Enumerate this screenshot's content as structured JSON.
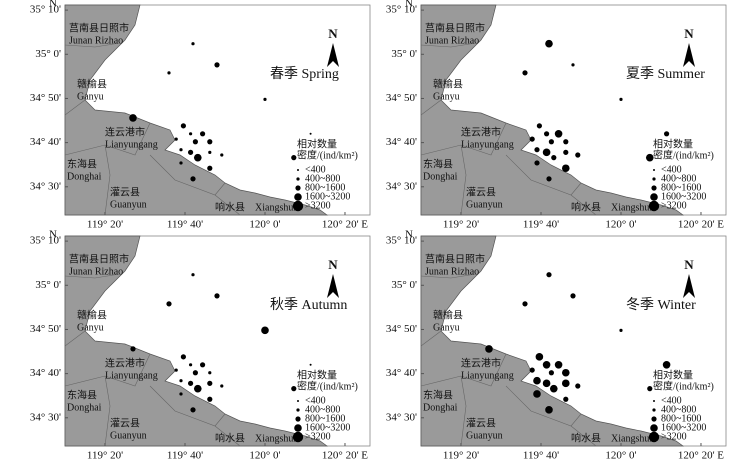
{
  "lat_axis_letter": "N",
  "north_arrow": "N",
  "lat_ticks": [
    {
      "value": 35.1667,
      "label": "35° 10'"
    },
    {
      "value": 35,
      "label": "35° 0'"
    },
    {
      "value": 34.8333,
      "label": "34° 50'"
    },
    {
      "value": 34.6667,
      "label": "34° 40'"
    },
    {
      "value": 34.5,
      "label": "34° 30'"
    }
  ],
  "lon_ticks": [
    {
      "value": 119.3333,
      "label": "119° 20'"
    },
    {
      "value": 119.6667,
      "label": "119° 40'"
    },
    {
      "value": 120,
      "label": "120° 0'"
    },
    {
      "value": 120.3333,
      "label": "120° 20' E"
    }
  ],
  "places": [
    {
      "cn": "莒南县日照市",
      "en": "Junan  Rizhao"
    },
    {
      "cn": "赣榆县",
      "en": "Ganyu"
    },
    {
      "cn": "连云港市",
      "en": "Lianyungang"
    },
    {
      "cn": "东海县",
      "en": "Donghai"
    },
    {
      "cn": "灌云县",
      "en": "Guanyun"
    },
    {
      "cn": "响水县",
      "en": "Xiangshui"
    }
  ],
  "legend": {
    "title": [
      "相对数量",
      "密度/(ind/km²)"
    ],
    "classes": [
      "<400",
      "400~800",
      "800~1600",
      "1600~3200",
      ">3200"
    ]
  },
  "stations": [
    {
      "lon": 119.7,
      "lat": 35.04
    },
    {
      "lon": 119.8,
      "lat": 34.96
    },
    {
      "lon": 119.6,
      "lat": 34.93
    },
    {
      "lon": 120.0,
      "lat": 34.83
    },
    {
      "lon": 119.45,
      "lat": 34.76
    },
    {
      "lon": 119.66,
      "lat": 34.73
    },
    {
      "lon": 119.69,
      "lat": 34.7
    },
    {
      "lon": 119.74,
      "lat": 34.7
    },
    {
      "lon": 119.63,
      "lat": 34.68
    },
    {
      "lon": 119.71,
      "lat": 34.67
    },
    {
      "lon": 119.77,
      "lat": 34.67
    },
    {
      "lon": 119.65,
      "lat": 34.64
    },
    {
      "lon": 119.69,
      "lat": 34.63
    },
    {
      "lon": 119.72,
      "lat": 34.61
    },
    {
      "lon": 119.77,
      "lat": 34.63
    },
    {
      "lon": 119.82,
      "lat": 34.62
    },
    {
      "lon": 119.65,
      "lat": 34.59
    },
    {
      "lon": 119.77,
      "lat": 34.57
    },
    {
      "lon": 119.7,
      "lat": 34.53
    },
    {
      "lon": 120.12,
      "lat": 34.61
    },
    {
      "lon": 120.19,
      "lat": 34.7
    }
  ],
  "panels": [
    {
      "season": "春季 Spring",
      "classes": [
        1,
        2,
        1,
        1,
        3,
        2,
        1,
        2,
        1,
        2,
        2,
        1,
        2,
        3,
        1,
        1,
        1,
        2,
        2,
        2,
        0
      ]
    },
    {
      "season": "夏季 Summer",
      "classes": [
        3,
        1,
        2,
        1,
        null,
        2,
        2,
        3,
        2,
        2,
        2,
        2,
        3,
        2,
        2,
        2,
        2,
        3,
        2,
        3,
        2
      ]
    },
    {
      "season": "秋季 Autumn",
      "classes": [
        1,
        2,
        2,
        3,
        2,
        2,
        1,
        2,
        1,
        2,
        1,
        1,
        2,
        3,
        2,
        1,
        1,
        2,
        2,
        2,
        0
      ]
    },
    {
      "season": "冬季 Winter",
      "classes": [
        2,
        2,
        2,
        1,
        3,
        3,
        3,
        3,
        2,
        2,
        3,
        3,
        3,
        3,
        3,
        2,
        3,
        2,
        3,
        2,
        3
      ]
    }
  ]
}
